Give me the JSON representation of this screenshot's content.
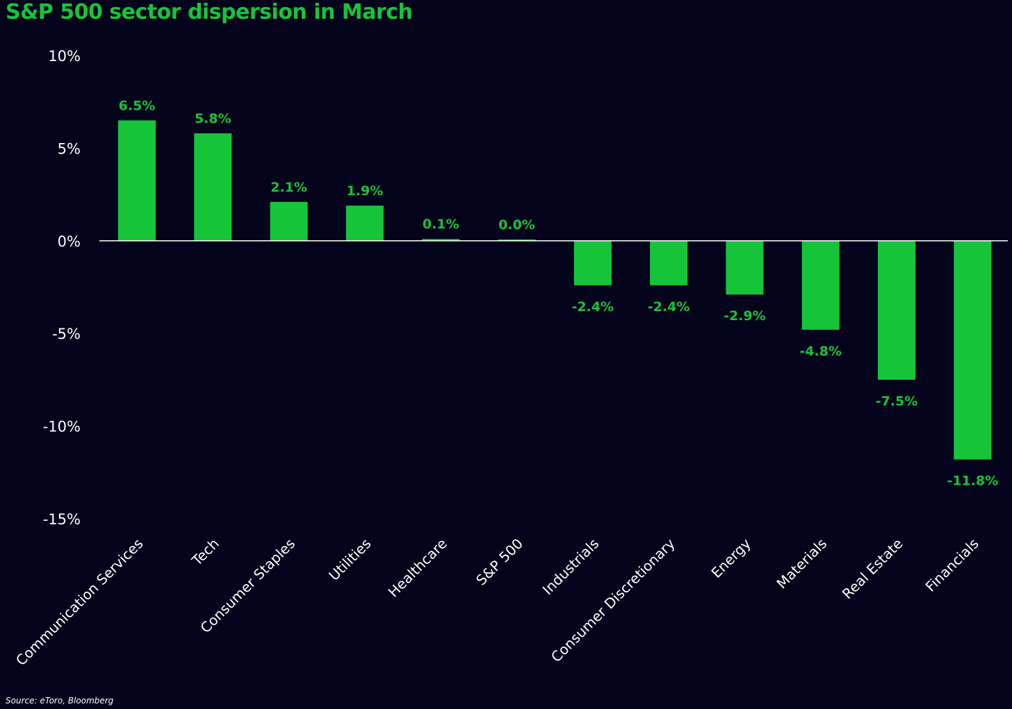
{
  "chart_data": {
    "type": "bar",
    "title": "S&P 500 sector dispersion in March",
    "source": "Source: eToro, Bloomberg",
    "categories": [
      "Communication Services",
      "Tech",
      "Consumer Staples",
      "Utilities",
      "Healthcare",
      "S&P 500",
      "Industrials",
      "Consumer Discretionary",
      "Energy",
      "Materials",
      "Real Estate",
      "Financials"
    ],
    "values": [
      6.5,
      5.8,
      2.1,
      1.9,
      0.1,
      0.0,
      -2.4,
      -2.4,
      -2.9,
      -4.8,
      -7.5,
      -11.8
    ],
    "value_labels": [
      "6.5%",
      "5.8%",
      "2.1%",
      "1.9%",
      "0.1%",
      "0.0%",
      "-2.4%",
      "-2.4%",
      "-2.9%",
      "-4.8%",
      "-7.5%",
      "-11.8%"
    ],
    "yticks": [
      10,
      5,
      0,
      -5,
      -10,
      -15
    ],
    "ytick_labels": [
      "10%",
      "5%",
      "0%",
      "-5%",
      "-10%",
      "-15%"
    ],
    "ylim": [
      -15,
      10
    ],
    "xlabel": "",
    "ylabel": "",
    "grid": false,
    "bar_color": "#16c43a",
    "background_color": "#03031b",
    "axis_color": "#ffffff"
  }
}
